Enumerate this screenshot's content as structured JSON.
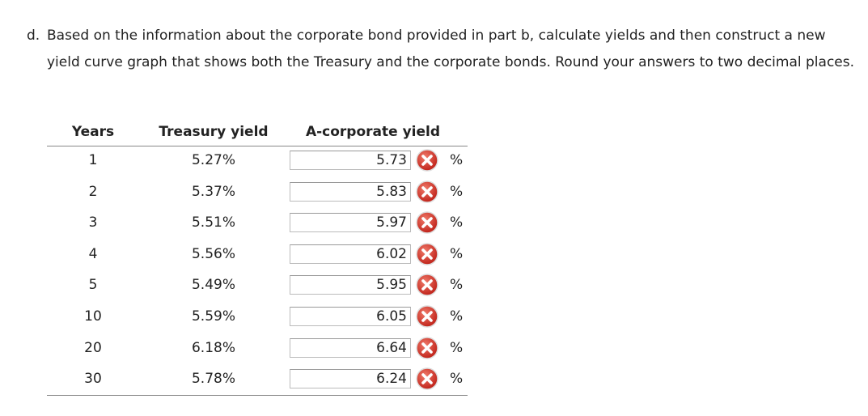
{
  "question": {
    "prefix": "d.",
    "text": "Based on the information about the corporate bond provided in part b, calculate yields and then construct a new yield curve graph that shows both the Treasury and the corporate bonds. Round your answers to two decimal places."
  },
  "table": {
    "headers": [
      "Years",
      "Treasury yield",
      "A-corporate yield"
    ],
    "rows": [
      [
        "1",
        "5.27%",
        "5.73",
        "%"
      ],
      [
        "2",
        "5.37%",
        "5.83",
        "%"
      ],
      [
        "3",
        "5.51%",
        "5.97",
        "%"
      ],
      [
        "4",
        "5.56%",
        "6.02",
        "%"
      ],
      [
        "5",
        "5.49%",
        "5.95",
        "%"
      ],
      [
        "10",
        "5.59%",
        "6.05",
        "%"
      ],
      [
        "20",
        "6.18%",
        "6.64",
        "%"
      ],
      [
        "30",
        "5.78%",
        "6.24",
        "%"
      ]
    ]
  }
}
